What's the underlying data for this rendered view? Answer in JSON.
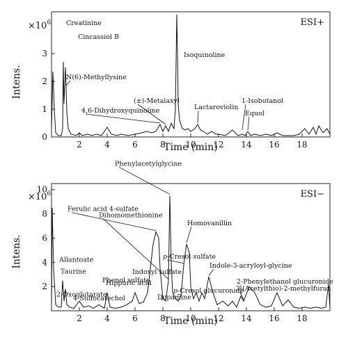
{
  "chart_data": [
    {
      "type": "line",
      "mode_label": "ESI+",
      "ylabel": "Intens.",
      "y_multiplier": "×10",
      "y_multiplier_exp": "6",
      "xlabel": "Time (min)",
      "xlim": [
        0,
        20
      ],
      "ylim": [
        0,
        4.5
      ],
      "x_ticks": [
        2,
        4,
        6,
        8,
        10,
        12,
        14,
        16,
        18
      ],
      "y_ticks": [
        0,
        1,
        2,
        3
      ],
      "series": [
        {
          "x": [
            0,
            0.1,
            0.2,
            0.3,
            0.5,
            0.7,
            0.8,
            0.85,
            0.9,
            1.0,
            1.05,
            1.1,
            1.2,
            1.4,
            1.8,
            2.0,
            2.2,
            2.6,
            2.9,
            3.2,
            3.6,
            4.0,
            4.3,
            4.7,
            5.0,
            5.5,
            6.0,
            6.5,
            6.8,
            7.2,
            7.5,
            7.8,
            8.0,
            8.2,
            8.4,
            8.6,
            8.8,
            8.9,
            9.0,
            9.05,
            9.1,
            9.2,
            9.4,
            9.6,
            9.8,
            10.0,
            10.3,
            10.5,
            10.7,
            10.9,
            11.2,
            11.5,
            11.8,
            12.0,
            12.5,
            13.0,
            13.4,
            13.7,
            13.9,
            14.1,
            14.3,
            14.6,
            15.0,
            15.4,
            15.8,
            16.2,
            16.6,
            17.0,
            17.4,
            17.8,
            18.2,
            18.5,
            18.8,
            19.0,
            19.2,
            19.5,
            19.8,
            20.0
          ],
          "y": [
            0.3,
            2.35,
            1.0,
            0.15,
            0.05,
            0.05,
            0.3,
            2.7,
            1.2,
            2.5,
            1.8,
            0.9,
            0.3,
            0.1,
            0.05,
            0.15,
            0.05,
            0.1,
            0.05,
            0.1,
            0.05,
            0.35,
            0.1,
            0.05,
            0.1,
            0.05,
            0.1,
            0.15,
            0.2,
            0.15,
            0.2,
            0.45,
            0.2,
            0.4,
            0.2,
            0.5,
            0.3,
            1.0,
            4.4,
            3.0,
            1.2,
            0.6,
            0.3,
            0.25,
            0.3,
            0.2,
            0.3,
            0.45,
            0.25,
            0.2,
            0.1,
            0.2,
            0.1,
            0.1,
            0.05,
            0.25,
            0.05,
            0.1,
            0.05,
            0.2,
            0.05,
            0.1,
            0.05,
            0.1,
            0.05,
            0.15,
            0.05,
            0.05,
            0.05,
            0.1,
            0.3,
            0.1,
            0.35,
            0.1,
            0.4,
            0.15,
            0.3,
            0.1
          ]
        }
      ],
      "annotations": [
        {
          "text": "Creatinine",
          "x": 0.85,
          "y": 2.7
        },
        {
          "text": "Cincassiol B",
          "x": 1.0,
          "y": 2.5
        },
        {
          "text": "N(6)-Methyllysine",
          "x": 1.05,
          "y": 1.8
        },
        {
          "text": "(±)-Metalaxyl",
          "x": 8.2,
          "y": 0.4
        },
        {
          "text": "4,6-Dihydroxyquinoline",
          "x": 7.8,
          "y": 0.45
        },
        {
          "text": "Isoquinoline",
          "x": 9.05,
          "y": 3.0
        },
        {
          "text": "Lactaroviolin",
          "x": 10.5,
          "y": 0.45
        },
        {
          "text": "1-Isobutanol",
          "x": 13.7,
          "y": 0.2
        },
        {
          "text": "Equol",
          "x": 14.1,
          "y": 0.2
        }
      ]
    },
    {
      "type": "line",
      "mode_label": "ESI−",
      "ylabel": "Intens.",
      "y_multiplier": "×10",
      "y_multiplier_exp": "6",
      "xlabel": "Time (min)",
      "xlim": [
        0,
        20
      ],
      "ylim": [
        0,
        10.5
      ],
      "x_ticks": [
        2,
        4,
        6,
        8,
        10,
        12,
        14,
        16,
        18
      ],
      "y_ticks": [
        2,
        4,
        6,
        8,
        10
      ],
      "series": [
        {
          "x": [
            0,
            0.05,
            0.15,
            0.3,
            0.5,
            0.7,
            0.8,
            0.9,
            1.0,
            1.1,
            1.3,
            1.6,
            2.0,
            2.3,
            2.7,
            3.0,
            3.4,
            3.8,
            4.0,
            4.2,
            4.6,
            5.0,
            5.4,
            5.8,
            6.0,
            6.3,
            6.6,
            6.9,
            7.1,
            7.3,
            7.5,
            7.7,
            7.8,
            8.0,
            8.2,
            8.4,
            8.5,
            8.6,
            8.7,
            8.9,
            9.1,
            9.3,
            9.5,
            9.7,
            9.9,
            10.0,
            10.2,
            10.4,
            10.6,
            10.8,
            11.0,
            11.3,
            11.6,
            11.9,
            12.3,
            12.7,
            13.0,
            13.3,
            13.6,
            13.8,
            14.2,
            14.6,
            15.0,
            15.4,
            15.8,
            16.2,
            16.6,
            17.0,
            17.4,
            17.8,
            18.2,
            18.6,
            19.0,
            19.4,
            19.7,
            19.9,
            20.0
          ],
          "y": [
            0.5,
            8.5,
            3.5,
            0.5,
            0.3,
            0.3,
            2.5,
            0.8,
            1.8,
            0.5,
            0.3,
            0.2,
            0.8,
            0.3,
            0.4,
            0.2,
            0.5,
            0.2,
            1.5,
            0.3,
            0.2,
            0.3,
            0.5,
            0.8,
            1.5,
            0.6,
            0.7,
            1.5,
            3.5,
            5.5,
            6.5,
            6.0,
            3.5,
            1.0,
            0.8,
            2.5,
            9.5,
            4.0,
            1.5,
            1.0,
            0.8,
            1.2,
            3.8,
            5.5,
            4.8,
            2.0,
            1.0,
            1.5,
            0.8,
            1.5,
            1.0,
            2.8,
            1.5,
            0.5,
            0.8,
            0.4,
            0.8,
            0.3,
            1.2,
            0.8,
            2.0,
            1.5,
            0.5,
            0.3,
            0.4,
            1.5,
            0.4,
            0.9,
            0.3,
            0.2,
            0.3,
            0.2,
            0.3,
            0.2,
            0.3,
            2.2,
            0.3
          ]
        }
      ],
      "annotations": [
        {
          "text": "Phenylacetylglycine",
          "x": 8.5,
          "y": 9.5
        },
        {
          "text": "Dihomomethionine",
          "x": 8.4,
          "y": 2.5
        },
        {
          "text": "Ferulic acid 4-sulfate",
          "x": 7.5,
          "y": 6.5
        },
        {
          "text": "Homovanillin",
          "x": 9.7,
          "y": 5.5
        },
        {
          "text": "p-Cresol sulfate",
          "x": 9.5,
          "y": 3.8
        },
        {
          "text": "Allantoate",
          "x": 0.8,
          "y": 2.5
        },
        {
          "text": "Taurine",
          "x": 1.0,
          "y": 1.8
        },
        {
          "text": "2-Oxoglutarate",
          "x": 1.1,
          "y": 0.5
        },
        {
          "text": "4-Sulfocatechol",
          "x": 2.0,
          "y": 0.8
        },
        {
          "text": "Indoxyl sulfate",
          "x": 6.0,
          "y": 1.5
        },
        {
          "text": "Hippuric acid",
          "x": 5.8,
          "y": 0.8
        },
        {
          "text": "Phenol sulfate",
          "x": 4.0,
          "y": 1.5
        },
        {
          "text": "Dopamine",
          "x": 8.0,
          "y": 1.0
        },
        {
          "text": "p-Cresol glucuronide",
          "x": 9.3,
          "y": 1.2
        },
        {
          "text": "Indole-3-acryloyl-glycine",
          "x": 11.3,
          "y": 2.8
        },
        {
          "text": "2-Phenylethanol glucuronide",
          "x": 13.6,
          "y": 1.2
        },
        {
          "text": "3-(Acetylthio)-2-methylfuran",
          "x": 13.8,
          "y": 0.8
        }
      ]
    }
  ]
}
